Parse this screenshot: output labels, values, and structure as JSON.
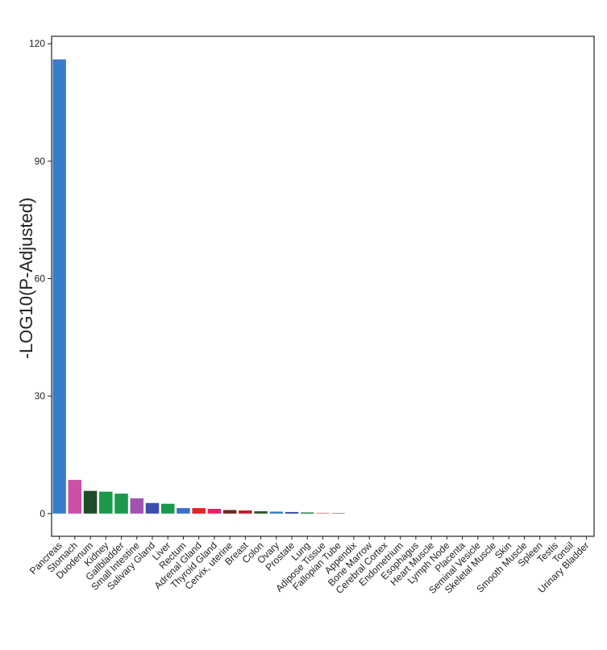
{
  "chart_data": {
    "type": "bar",
    "y_label": "-LOG10(P-Adjusted)",
    "categories": [
      "Pancreas",
      "Stomach",
      "Duodenum",
      "Kidney",
      "Gallbladder",
      "Small Intestine",
      "Salivary Gland",
      "Liver",
      "Rectum",
      "Adrenal Gland",
      "Thyroid Gland",
      "Cervix, uterine",
      "Breast",
      "Colon",
      "Ovary",
      "Prostate",
      "Lung",
      "Adipose Tissue",
      "Fallopian Tube",
      "Appendix",
      "Bone Marrow",
      "Cerebral Cortex",
      "Endometrium",
      "Esophagus",
      "Heart Muscle",
      "Lymph Node",
      "Placenta",
      "Seminal Vesicle",
      "Skeletal Muscle",
      "Skin",
      "Smooth Muscle",
      "Spleen",
      "Testis",
      "Tonsil",
      "Urinary Bladder"
    ],
    "values": [
      116,
      8.6,
      5.8,
      5.6,
      5.1,
      3.9,
      2.7,
      2.5,
      1.4,
      1.4,
      1.2,
      0.9,
      0.8,
      0.6,
      0.5,
      0.4,
      0.3,
      0.2,
      0.15,
      0,
      0,
      0,
      0,
      0,
      0,
      0,
      0,
      0,
      0,
      0,
      0,
      0,
      0,
      0,
      0
    ],
    "colors": [
      "#3a7ccc",
      "#cc4fa8",
      "#1f4d2b",
      "#1a9a4a",
      "#1a9a4a",
      "#a054b0",
      "#3b4fb0",
      "#1a9a4a",
      "#3a6fc8",
      "#e8202a",
      "#e8206a",
      "#6b2a1a",
      "#c81e2a",
      "#2a5a2a",
      "#2a7ac8",
      "#3a4ab0",
      "#1a8a3a",
      "#f08080",
      "#808080",
      "#808080",
      "#808080",
      "#808080",
      "#808080",
      "#808080",
      "#808080",
      "#808080",
      "#808080",
      "#808080",
      "#808080",
      "#808080",
      "#808080",
      "#808080",
      "#808080",
      "#808080",
      "#808080"
    ],
    "ylim": [
      -5.8,
      121.9
    ],
    "yticks": [
      0,
      30,
      60,
      90,
      120
    ]
  }
}
